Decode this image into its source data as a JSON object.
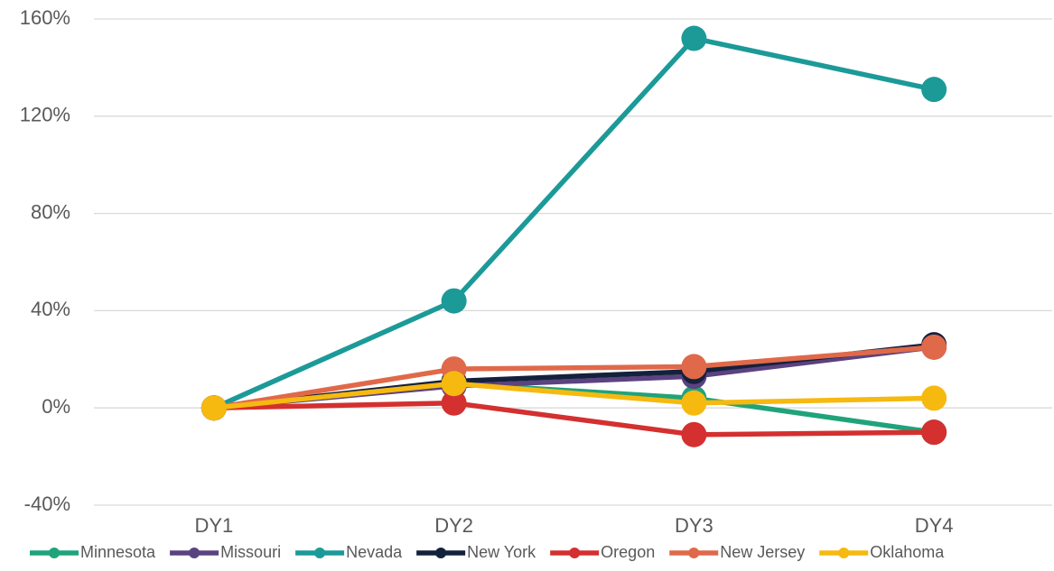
{
  "chart_data": {
    "type": "line",
    "categories": [
      "DY1",
      "DY2",
      "DY3",
      "DY4"
    ],
    "series": [
      {
        "name": "Minnesota",
        "color": "#1fa37a",
        "values": [
          0,
          10,
          4,
          -10
        ]
      },
      {
        "name": "Missouri",
        "color": "#5b4280",
        "values": [
          0,
          9,
          13,
          25
        ]
      },
      {
        "name": "Nevada",
        "color": "#1b9a98",
        "values": [
          0,
          44,
          152,
          131
        ]
      },
      {
        "name": "New York",
        "color": "#14213d",
        "values": [
          0,
          11,
          15,
          26
        ]
      },
      {
        "name": "Oregon",
        "color": "#d3302f",
        "values": [
          0,
          2,
          -11,
          -10
        ]
      },
      {
        "name": "New Jersey",
        "color": "#e0694a",
        "values": [
          0,
          16,
          17,
          25
        ]
      },
      {
        "name": "Oklahoma",
        "color": "#f6b910",
        "values": [
          0,
          10,
          2,
          4
        ]
      }
    ],
    "ylim": [
      -40,
      160
    ],
    "yticks": [
      {
        "value": -40,
        "label": "-40%"
      },
      {
        "value": 0,
        "label": "0%"
      },
      {
        "value": 40,
        "label": "40%"
      },
      {
        "value": 80,
        "label": "80%"
      },
      {
        "value": 120,
        "label": "120%"
      },
      {
        "value": 160,
        "label": "160%"
      }
    ],
    "grid": true,
    "legend": "bottom"
  }
}
